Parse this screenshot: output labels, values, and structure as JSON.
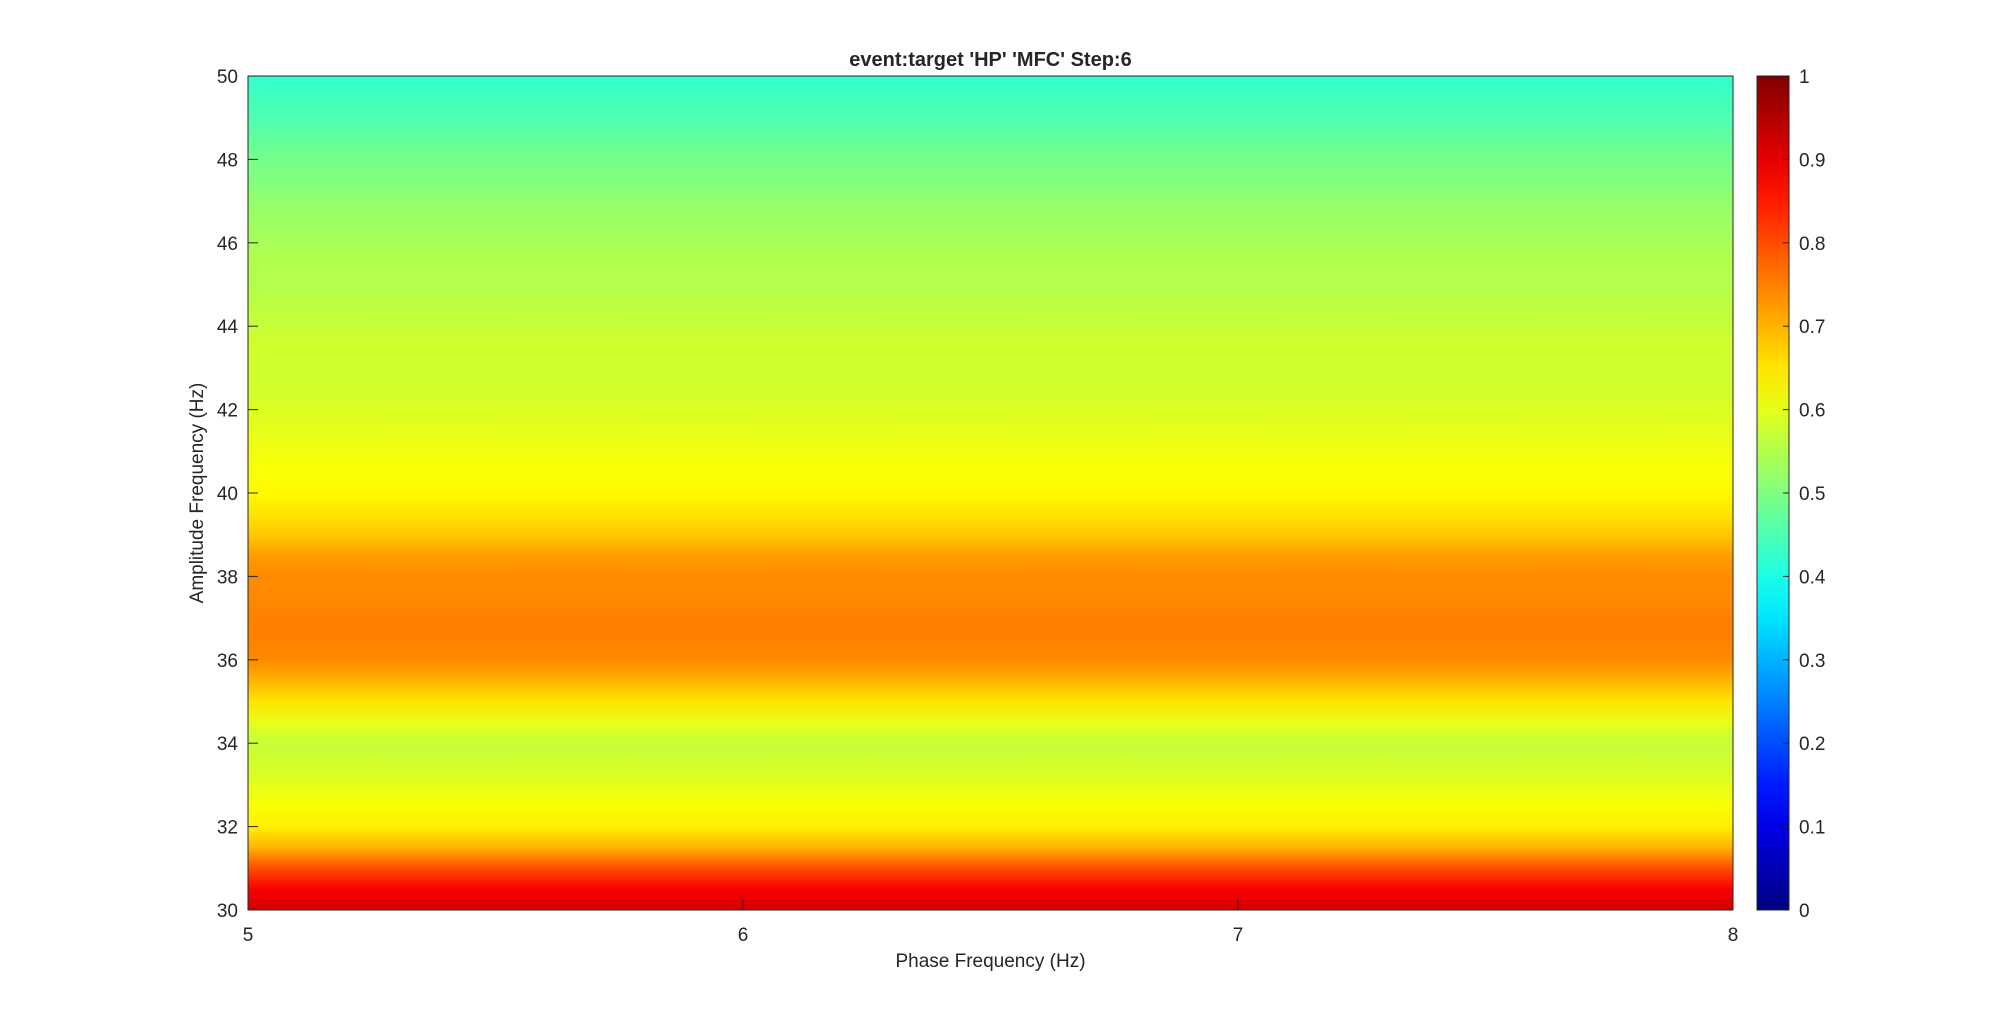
{
  "chart_data": {
    "type": "heatmap",
    "title": "event:target 'HP'  'MFC' Step:6",
    "xlabel": "Phase Frequency (Hz)",
    "ylabel": "Amplitude Frequency (Hz)",
    "xlim": [
      5,
      8
    ],
    "ylim": [
      30,
      50
    ],
    "xticks": [
      5,
      6,
      7,
      8
    ],
    "yticks": [
      30,
      32,
      34,
      36,
      38,
      40,
      42,
      44,
      46,
      48,
      50
    ],
    "clim": [
      0,
      1
    ],
    "colorbar_ticks": [
      0,
      0.1,
      0.2,
      0.3,
      0.4,
      0.5,
      0.6,
      0.7,
      0.8,
      0.9,
      1
    ],
    "colormap": "jet",
    "amplitude_frequency": [
      30,
      30.5,
      31,
      31.5,
      32,
      32.5,
      33,
      33.5,
      34,
      34.5,
      35,
      35.5,
      36,
      36.5,
      37,
      37.5,
      38,
      38.5,
      39,
      39.5,
      40,
      40.5,
      41,
      41.5,
      42,
      42.5,
      43,
      43.5,
      44,
      44.5,
      45,
      45.5,
      46,
      46.5,
      47,
      47.5,
      48,
      48.5,
      49,
      49.5,
      50
    ],
    "values": [
      0.92,
      0.88,
      0.8,
      0.7,
      0.64,
      0.62,
      0.6,
      0.58,
      0.57,
      0.6,
      0.65,
      0.7,
      0.74,
      0.75,
      0.75,
      0.74,
      0.74,
      0.72,
      0.68,
      0.65,
      0.63,
      0.62,
      0.61,
      0.6,
      0.59,
      0.58,
      0.58,
      0.58,
      0.57,
      0.56,
      0.55,
      0.55,
      0.54,
      0.53,
      0.52,
      0.5,
      0.49,
      0.47,
      0.45,
      0.44,
      0.42
    ]
  }
}
